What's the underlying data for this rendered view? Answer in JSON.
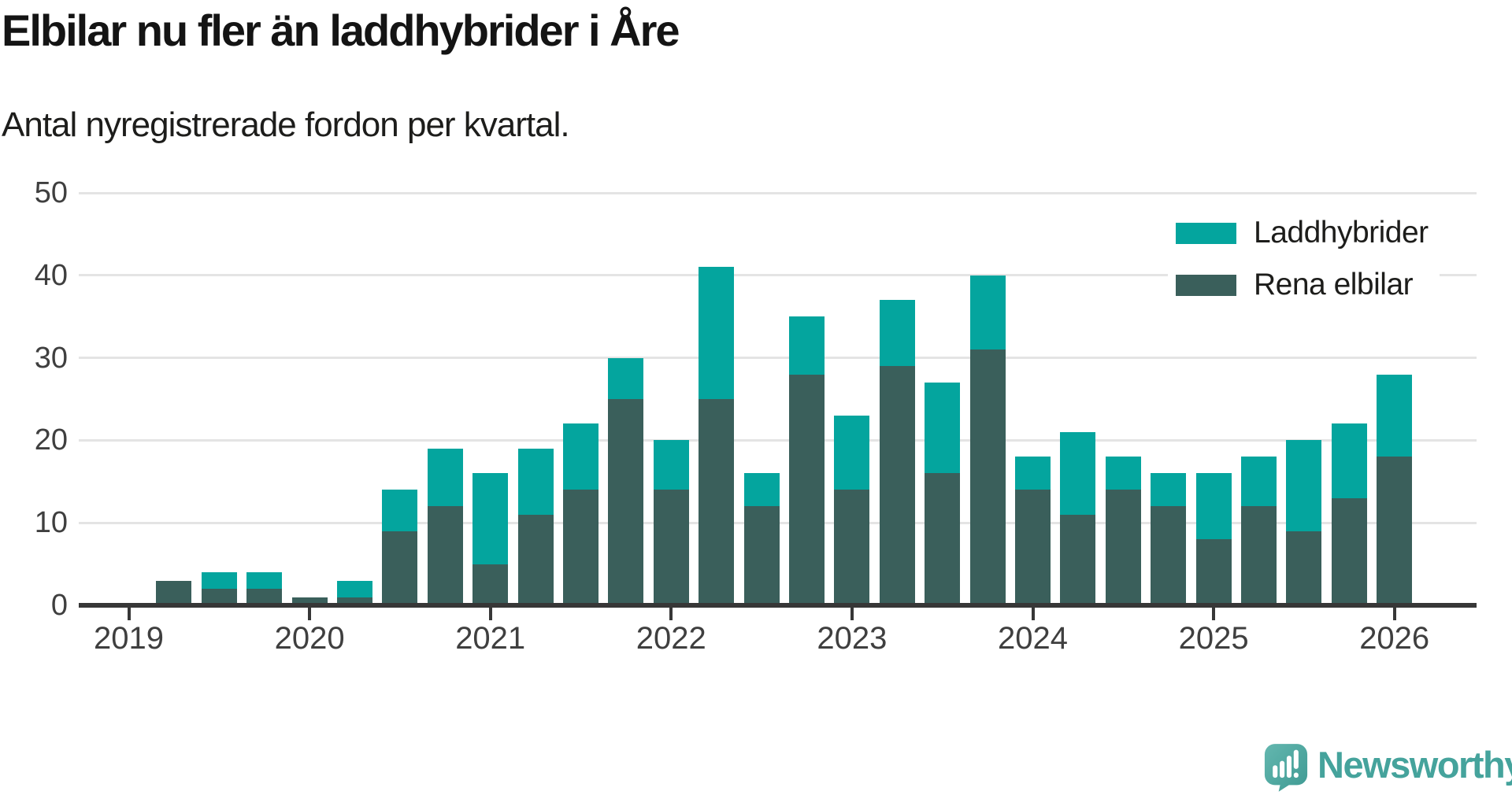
{
  "header": {
    "title": "Elbilar nu fler än laddhybrider i Åre",
    "subtitle": "Antal nyregistrerade fordon per kvartal."
  },
  "legend": {
    "items": [
      {
        "label": "Laddhybrider",
        "color": "#04a59e"
      },
      {
        "label": "Rena elbilar",
        "color": "#3a5f5b"
      }
    ]
  },
  "branding": {
    "wordmark": "Newsworthy",
    "icon": "newsworthy-speech-bubble-bar-chart-icon",
    "color": "#45a39c"
  },
  "colors": {
    "laddhybrider": "#04a59e",
    "rena_elbilar": "#3a5f5b",
    "axis": "#373737",
    "gridline": "#e4e4e4",
    "title_text": "#141414",
    "tick_label_text": "#3f3f3f",
    "brand_teal": "#45a39c"
  },
  "chart_data": {
    "type": "bar",
    "stacked": true,
    "title": "Elbilar nu fler än laddhybrider i Åre",
    "subtitle": "Antal nyregistrerade fordon per kvartal.",
    "xlabel": "",
    "ylabel": "",
    "ylim": [
      0,
      50
    ],
    "yticks": [
      0,
      10,
      20,
      30,
      40,
      50
    ],
    "grid": true,
    "legend_position": "top-right",
    "x": [
      "2019 Q1",
      "2019 Q2",
      "2019 Q3",
      "2019 Q4",
      "2020 Q1",
      "2020 Q2",
      "2020 Q3",
      "2020 Q4",
      "2021 Q1",
      "2021 Q2",
      "2021 Q3",
      "2021 Q4",
      "2022 Q1",
      "2022 Q2",
      "2022 Q3",
      "2022 Q4",
      "2023 Q1",
      "2023 Q2",
      "2023 Q3",
      "2023 Q4",
      "2024 Q1",
      "2024 Q2",
      "2024 Q3",
      "2024 Q4",
      "2025 Q1",
      "2025 Q2",
      "2025 Q3",
      "2025 Q4",
      "2026 Q1"
    ],
    "x_tick_labels": [
      "2019",
      "2020",
      "2021",
      "2022",
      "2023",
      "2024",
      "2025",
      "2026"
    ],
    "x_tick_every": 4,
    "series": [
      {
        "name": "Laddhybrider",
        "color": "#04a59e",
        "stack_position": "top",
        "values": [
          0,
          0,
          2,
          2,
          0,
          2,
          5,
          7,
          11,
          8,
          8,
          5,
          6,
          16,
          4,
          7,
          9,
          8,
          11,
          9,
          4,
          10,
          4,
          4,
          8,
          6,
          11,
          9,
          10
        ]
      },
      {
        "name": "Rena elbilar",
        "color": "#3a5f5b",
        "stack_position": "bottom",
        "values": [
          0,
          3,
          2,
          2,
          1,
          1,
          9,
          12,
          5,
          11,
          14,
          25,
          14,
          25,
          12,
          28,
          14,
          29,
          16,
          31,
          14,
          11,
          14,
          12,
          8,
          12,
          9,
          13,
          18
        ]
      }
    ],
    "totals": [
      0,
      3,
      4,
      4,
      1,
      3,
      14,
      19,
      16,
      19,
      22,
      30,
      20,
      41,
      16,
      35,
      23,
      37,
      27,
      40,
      18,
      21,
      18,
      16,
      16,
      18,
      20,
      22,
      28
    ]
  }
}
